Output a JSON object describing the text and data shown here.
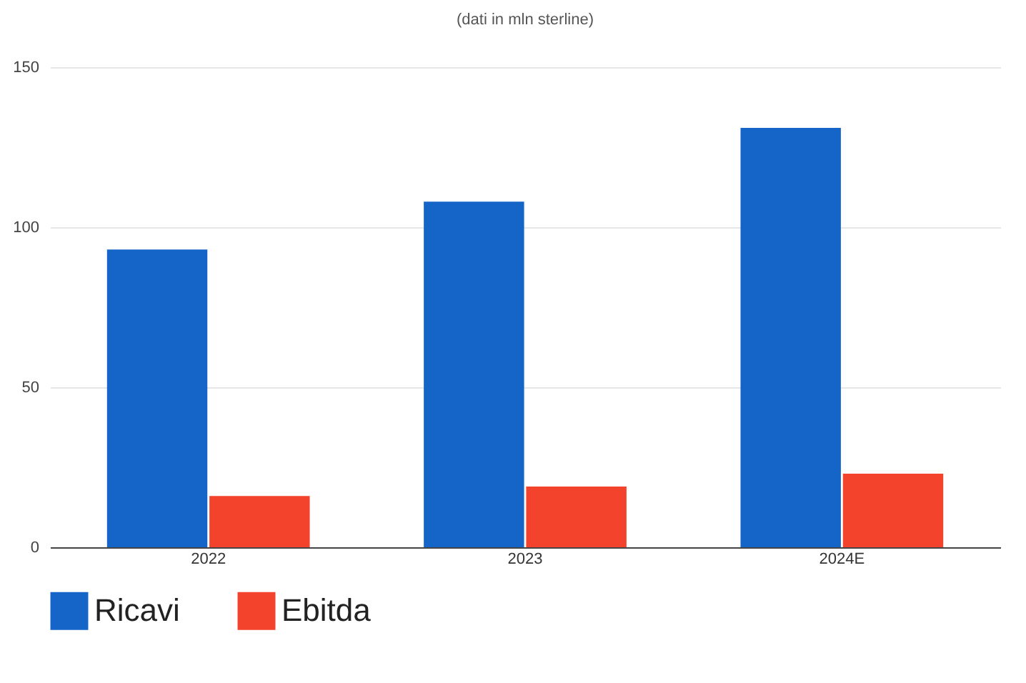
{
  "chart_data": {
    "type": "bar",
    "title": "(dati in mln sterline)",
    "categories": [
      "2022",
      "2023",
      "2024E"
    ],
    "series": [
      {
        "name": "Ricavi",
        "color": "#1565c8",
        "values": [
          93,
          108,
          131
        ]
      },
      {
        "name": "Ebitda",
        "color": "#f4432c",
        "values": [
          16,
          19,
          23
        ]
      }
    ],
    "ylim": [
      0,
      150
    ],
    "yticks": [
      0,
      50,
      100,
      150
    ],
    "grid": "y",
    "legend": "bottom"
  }
}
